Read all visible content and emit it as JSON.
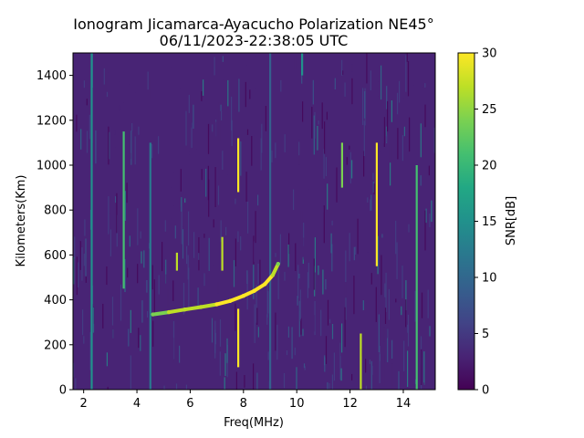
{
  "chart_data": {
    "type": "heatmap",
    "title": "Ionogram Jicamarca-Ayacucho Polarization NE45°",
    "subtitle": "06/11/2023-22:38:05 UTC",
    "xlabel": "Freq(MHz)",
    "ylabel": "Kilometers(Km)",
    "xlim": [
      1.6,
      15.2
    ],
    "ylim": [
      0,
      1500
    ],
    "x_ticks": [
      2,
      4,
      6,
      8,
      10,
      12,
      14
    ],
    "y_ticks": [
      0,
      200,
      400,
      600,
      800,
      1000,
      1200,
      1400
    ],
    "grid": false,
    "colormap": "viridis",
    "colorbar": {
      "label": "SNR[dB]",
      "range": [
        0,
        30
      ],
      "ticks": [
        0,
        5,
        10,
        15,
        20,
        25,
        30
      ]
    },
    "background_snr_db": 1.5,
    "trace": {
      "name": "",
      "freq_mhz": [
        4.6,
        5.2,
        5.8,
        6.4,
        7.0,
        7.5,
        8.0,
        8.4,
        8.8,
        9.1,
        9.3
      ],
      "height_km": [
        335,
        345,
        357,
        368,
        380,
        395,
        418,
        440,
        470,
        510,
        560
      ],
      "snr_db": [
        24,
        26,
        28,
        28,
        29,
        30,
        30,
        30,
        29,
        27,
        25
      ]
    },
    "interference_lines": [
      {
        "freq_mhz": 2.3,
        "from_km": 0,
        "to_km": 1500,
        "snr_db": 14
      },
      {
        "freq_mhz": 3.5,
        "from_km": 450,
        "to_km": 1150,
        "snr_db": 22
      },
      {
        "freq_mhz": 4.5,
        "from_km": 0,
        "to_km": 1100,
        "snr_db": 12
      },
      {
        "freq_mhz": 5.5,
        "from_km": 530,
        "to_km": 610,
        "snr_db": 27
      },
      {
        "freq_mhz": 7.2,
        "from_km": 530,
        "to_km": 680,
        "snr_db": 27
      },
      {
        "freq_mhz": 7.8,
        "from_km": 880,
        "to_km": 1120,
        "snr_db": 30
      },
      {
        "freq_mhz": 7.8,
        "from_km": 100,
        "to_km": 360,
        "snr_db": 30
      },
      {
        "freq_mhz": 9.0,
        "from_km": 0,
        "to_km": 1500,
        "snr_db": 8
      },
      {
        "freq_mhz": 10.2,
        "from_km": 1400,
        "to_km": 1500,
        "snr_db": 16
      },
      {
        "freq_mhz": 11.7,
        "from_km": 900,
        "to_km": 1100,
        "snr_db": 24
      },
      {
        "freq_mhz": 12.4,
        "from_km": 0,
        "to_km": 250,
        "snr_db": 26
      },
      {
        "freq_mhz": 13.0,
        "from_km": 550,
        "to_km": 1100,
        "snr_db": 30
      },
      {
        "freq_mhz": 14.5,
        "from_km": 0,
        "to_km": 1000,
        "snr_db": 22
      }
    ]
  }
}
